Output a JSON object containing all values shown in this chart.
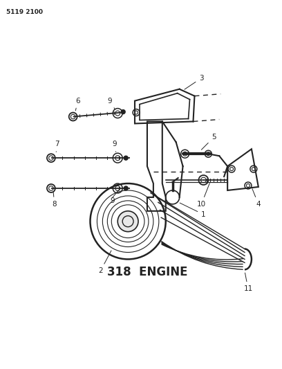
{
  "background_color": "#ffffff",
  "line_color": "#222222",
  "text_color": "#222222",
  "part_number_text": "5119 2100",
  "engine_label": "318  ENGINE",
  "engine_label_fontsize": 12,
  "part_number_fontsize": 6.5,
  "label_fontsize": 7.5,
  "fig_width": 4.08,
  "fig_height": 5.33,
  "dpi": 100
}
